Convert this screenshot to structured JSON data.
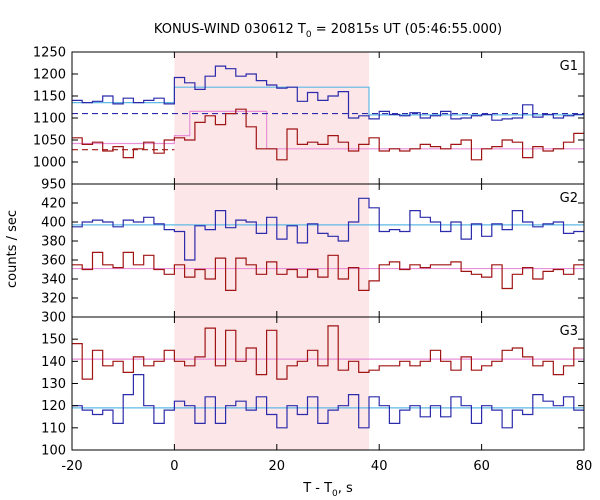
{
  "title": {
    "prefix": "KONUS-WIND 030612 T",
    "sub": "0",
    "suffix": " = 20815s UT (05:46:55.000)"
  },
  "xlabel": {
    "prefix": "T - T",
    "sub": "0",
    "suffix": ", s"
  },
  "ylabel": "counts / sec",
  "colors": {
    "blue": "#2b2bab",
    "red": "#a01414",
    "cyan": "#5fb8e6",
    "pink": "#e890d8",
    "shade": "#fde6e8",
    "dashed_blue": "#2b2bab",
    "dashed_red": "#a01414"
  },
  "chart_data": {
    "type": "line",
    "x_range": [
      -20,
      80
    ],
    "x_ticks": [
      -20,
      0,
      20,
      40,
      60,
      80
    ],
    "x_tick_labels": [
      "-20",
      "0",
      "20",
      "40",
      "60",
      "80"
    ],
    "shaded_interval": [
      0,
      38
    ],
    "bin_width": 2,
    "bin_start": -20,
    "panels": [
      {
        "label": "G1",
        "ylim": [
          950,
          1250
        ],
        "y_ticks": [
          950,
          1000,
          1050,
          1100,
          1150,
          1200,
          1250
        ],
        "y_tick_labels": [
          "950",
          "1000",
          "1050",
          "1100",
          "1150",
          "1200",
          "1250"
        ],
        "blue": [
          1140,
          1135,
          1138,
          1150,
          1132,
          1145,
          1135,
          1140,
          1145,
          1132,
          1192,
          1180,
          1165,
          1195,
          1218,
          1212,
          1195,
          1200,
          1185,
          1175,
          1168,
          1170,
          1138,
          1158,
          1140,
          1150,
          1160,
          1100,
          1105,
          1098,
          1115,
          1108,
          1105,
          1112,
          1100,
          1105,
          1115,
          1098,
          1100,
          1105,
          1108,
          1095,
          1098,
          1100,
          1130,
          1102,
          1108,
          1100,
          1105,
          1108
        ],
        "red": [
          1055,
          1040,
          1045,
          1025,
          1035,
          1010,
          1030,
          1045,
          1020,
          1050,
          1055,
          1050,
          1090,
          1105,
          1085,
          1110,
          1120,
          1080,
          1030,
          1030,
          1005,
          1075,
          1040,
          1045,
          1040,
          1060,
          1045,
          1025,
          1040,
          1055,
          1025,
          1030,
          1025,
          1030,
          1040,
          1035,
          1030,
          1040,
          1050,
          1005,
          1030,
          1035,
          1050,
          1045,
          1010,
          1035,
          1025,
          1030,
          1045,
          1065
        ],
        "cyan_levels": [
          {
            "x0": -20,
            "x1": 0,
            "y": 1135
          },
          {
            "x0": 0,
            "x1": 38,
            "y": 1170
          },
          {
            "x0": 38,
            "x1": 80,
            "y": 1107
          }
        ],
        "pink_levels": [
          {
            "x0": -20,
            "x1": 0,
            "y": 1042
          },
          {
            "x0": 0,
            "x1": 3,
            "y": 1060
          },
          {
            "x0": 3,
            "x1": 18,
            "y": 1115
          },
          {
            "x0": 18,
            "x1": 80,
            "y": 1030
          }
        ],
        "dashed_blue": {
          "x0": -20,
          "x1": 80,
          "y": 1110
        },
        "dashed_red": {
          "x0": -20,
          "x1": 0,
          "y": 1028
        }
      },
      {
        "label": "G2",
        "ylim": [
          300,
          440
        ],
        "y_ticks": [
          300,
          320,
          340,
          360,
          380,
          400,
          420
        ],
        "y_tick_labels": [
          "300",
          "320",
          "340",
          "360",
          "380",
          "400",
          "420"
        ],
        "blue": [
          395,
          400,
          402,
          400,
          395,
          402,
          400,
          405,
          398,
          392,
          390,
          360,
          396,
          392,
          412,
          394,
          402,
          400,
          388,
          405,
          382,
          396,
          378,
          398,
          388,
          385,
          380,
          400,
          425,
          415,
          390,
          392,
          390,
          412,
          405,
          400,
          390,
          400,
          382,
          398,
          385,
          398,
          392,
          412,
          400,
          395,
          398,
          400,
          388,
          390
        ],
        "red": [
          355,
          350,
          368,
          355,
          352,
          368,
          355,
          365,
          350,
          345,
          355,
          342,
          350,
          340,
          362,
          328,
          362,
          355,
          345,
          358,
          345,
          350,
          342,
          350,
          342,
          365,
          340,
          352,
          328,
          338,
          355,
          358,
          350,
          355,
          352,
          355,
          355,
          358,
          348,
          345,
          342,
          355,
          330,
          345,
          352,
          340,
          348,
          350,
          345,
          355
        ],
        "cyan_level": 397,
        "pink_level": 351
      },
      {
        "label": "G3",
        "ylim": [
          100,
          160
        ],
        "y_ticks": [
          100,
          110,
          120,
          130,
          140,
          150
        ],
        "y_tick_labels": [
          "100",
          "110",
          "120",
          "130",
          "140",
          "150"
        ],
        "blue": [
          120,
          118,
          116,
          118,
          112,
          125,
          134,
          120,
          112,
          118,
          122,
          120,
          112,
          124,
          112,
          120,
          122,
          118,
          124,
          116,
          110,
          120,
          116,
          124,
          112,
          118,
          120,
          125,
          110,
          124,
          120,
          112,
          118,
          120,
          115,
          120,
          115,
          124,
          120,
          112,
          120,
          118,
          110,
          118,
          116,
          125,
          122,
          120,
          124,
          118
        ],
        "red": [
          148,
          132,
          145,
          138,
          140,
          135,
          142,
          138,
          140,
          145,
          140,
          138,
          142,
          155,
          138,
          154,
          140,
          146,
          134,
          154,
          132,
          138,
          140,
          145,
          138,
          156,
          136,
          140,
          135,
          136,
          138,
          138,
          140,
          138,
          140,
          145,
          140,
          136,
          142,
          136,
          138,
          140,
          145,
          146,
          142,
          138,
          140,
          134,
          138,
          146
        ],
        "cyan_level": 119,
        "pink_level": 141
      }
    ]
  }
}
